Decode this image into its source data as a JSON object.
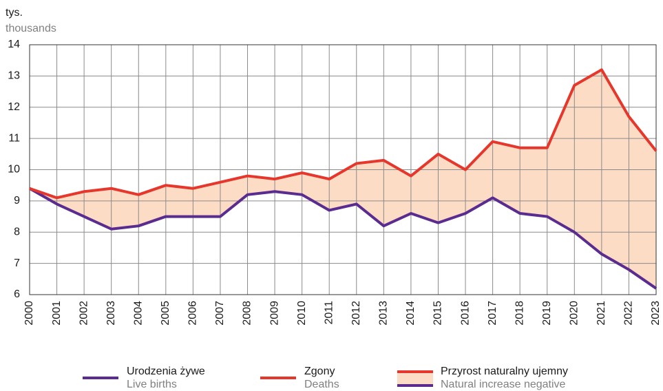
{
  "chart_data": {
    "type": "line",
    "y_label": "tys.",
    "y_label_en": "thousands",
    "categories": [
      "2000",
      "2001",
      "2002",
      "2003",
      "2004",
      "2005",
      "2006",
      "2007",
      "2008",
      "2009",
      "2010",
      "2011",
      "2012",
      "2013",
      "2014",
      "2015",
      "2016",
      "2017",
      "2018",
      "2019",
      "2020",
      "2021",
      "2022",
      "2023"
    ],
    "series": [
      {
        "name": "Urodzenia żywe",
        "name_en": "Live births",
        "color": "#5b2c8f",
        "values": [
          9.4,
          8.9,
          8.5,
          8.1,
          8.2,
          8.5,
          8.5,
          8.5,
          9.2,
          9.3,
          9.2,
          8.7,
          8.9,
          8.2,
          8.6,
          8.3,
          8.6,
          9.1,
          8.6,
          8.5,
          8.0,
          7.3,
          6.8,
          6.2
        ]
      },
      {
        "name": "Zgony",
        "name_en": "Deaths",
        "color": "#e6372c",
        "values": [
          9.4,
          9.1,
          9.3,
          9.4,
          9.2,
          9.5,
          9.4,
          9.6,
          9.8,
          9.7,
          9.9,
          9.7,
          10.2,
          10.3,
          9.8,
          10.5,
          10.0,
          10.9,
          10.7,
          10.7,
          12.7,
          13.2,
          11.7,
          10.6
        ]
      }
    ],
    "area": {
      "name": "Przyrost naturalny ujemny",
      "name_en": "Natural increase negative",
      "color": "#fddcc5"
    },
    "ylim": [
      6,
      14
    ],
    "yticks": [
      6,
      7,
      8,
      9,
      10,
      11,
      12,
      13,
      14
    ],
    "grid": true
  }
}
